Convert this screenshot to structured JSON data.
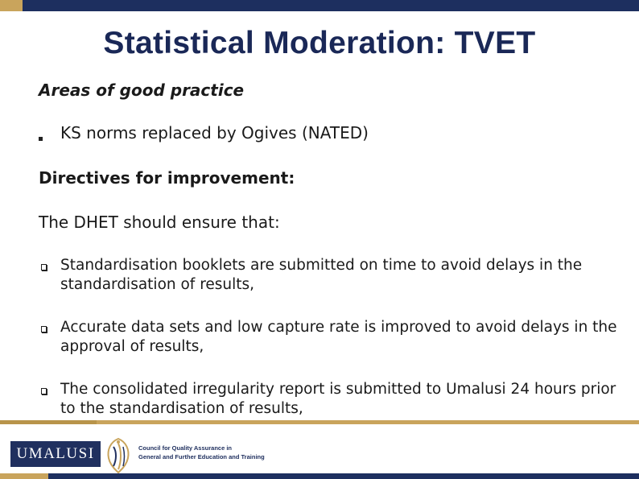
{
  "slide": {
    "title": "Statistical Moderation: TVET",
    "areas_heading": "Areas of good practice",
    "good_practice": [
      "KS norms replaced by Ogives (NATED)"
    ],
    "directives_heading": "Directives for improvement:",
    "intro": "The DHET should ensure that:",
    "directives": [
      "Standardisation booklets are submitted on time to avoid delays in the standardisation of results,",
      "Accurate data sets and low capture rate is improved to avoid delays in  the approval of results,",
      "The consolidated irregularity report is submitted  to Umalusi  24 hours prior to the standardisation of results,"
    ]
  },
  "footer": {
    "logo_text": "UMALUSI",
    "org_line1": "Council for Quality Assurance in",
    "org_line2": "General and Further Education and Training"
  },
  "colors": {
    "navy": "#1d2f5f",
    "gold": "#c9a45c",
    "title_blue": "#1a2857"
  }
}
